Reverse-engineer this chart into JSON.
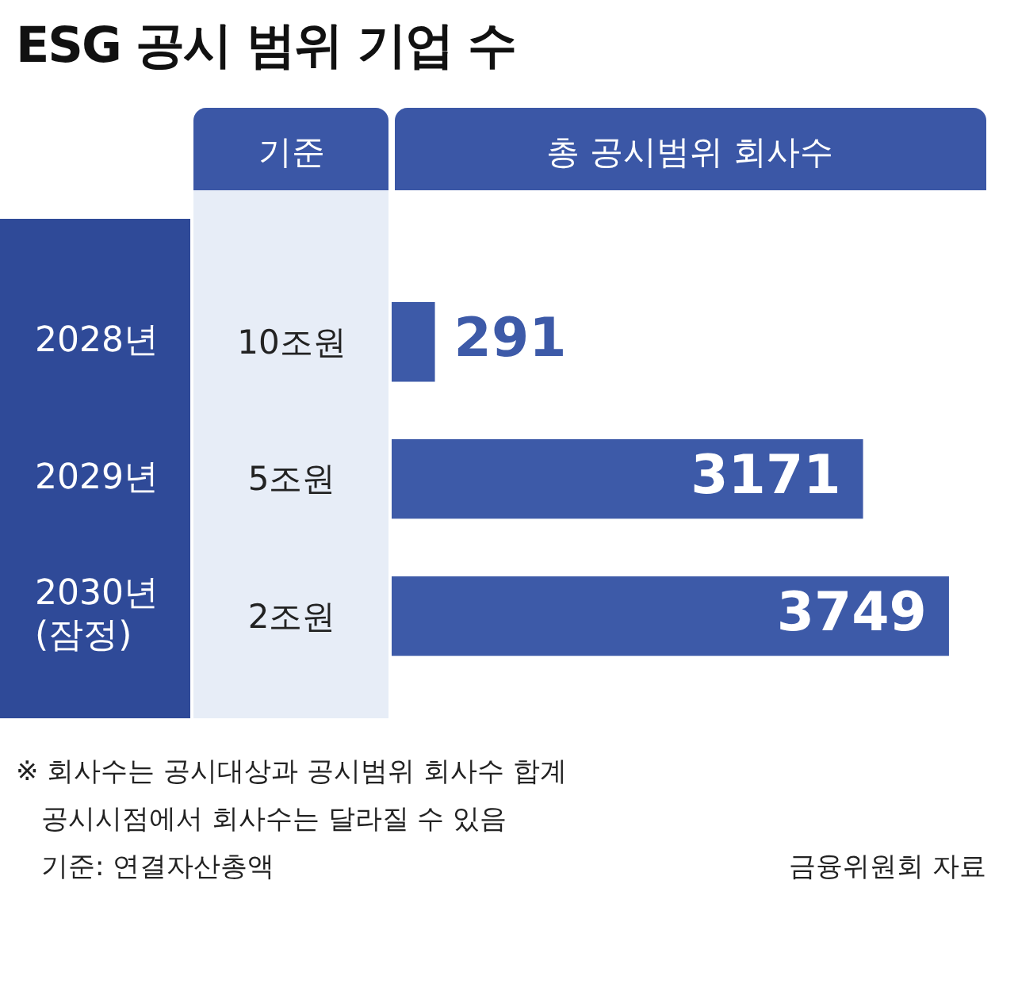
{
  "chart_data": {
    "type": "bar",
    "orientation": "horizontal",
    "title": "ESG 공시 범위 기업 수",
    "categories": [
      "2028년",
      "2029년",
      "2030년\n(잠정)"
    ],
    "series": [
      {
        "color": "#3d5aa8",
        "values": [
          291,
          3171,
          3749
        ]
      }
    ],
    "data_labels": true,
    "legend": false,
    "grid": false,
    "annotations": [
      "기준",
      "총 공시범위 회사수",
      "10조원",
      "5조원",
      "2조원",
      "※ 회사수는 공시대상과 공시범위 회사수 합계",
      "공시시점에서 회사수는 달라질 수 있음",
      "기준: 연결자산총액",
      "금융위원회 자료"
    ]
  }
}
